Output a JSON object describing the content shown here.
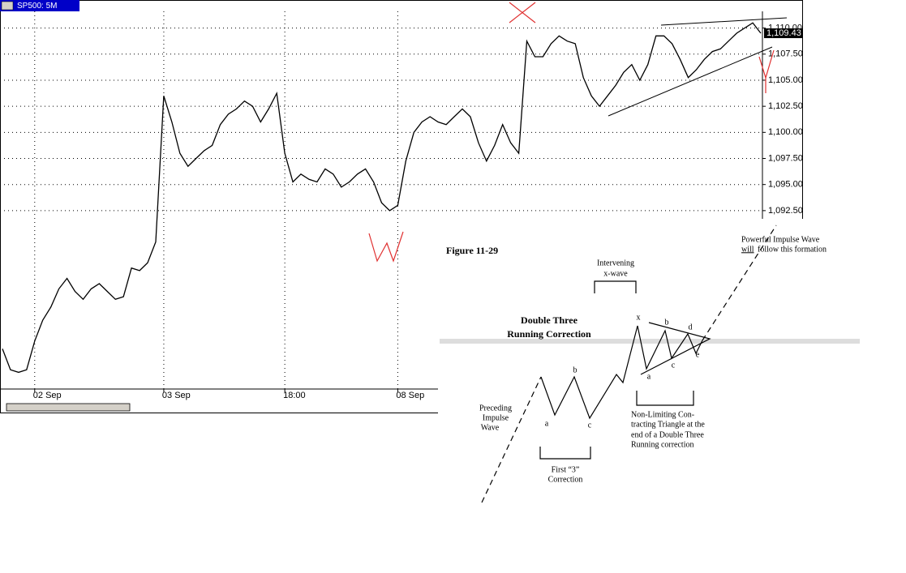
{
  "chart_data": {
    "type": "line",
    "title": "SP500: 5M",
    "color": "#000000",
    "categories": [
      null,
      null,
      null,
      null,
      "02 Sep",
      null,
      null,
      null,
      null,
      null,
      null,
      null,
      null,
      null,
      null,
      null,
      null,
      null,
      null,
      null,
      "03 Sep",
      null,
      null,
      null,
      null,
      null,
      null,
      null,
      null,
      null,
      null,
      null,
      null,
      null,
      null,
      "18:00",
      null,
      null,
      null,
      null,
      null,
      null,
      null,
      null,
      null,
      null,
      null,
      null,
      null,
      "08 Sep",
      null,
      null,
      null,
      null,
      null,
      null,
      null,
      null,
      null,
      null,
      null,
      null,
      null,
      null,
      null,
      null,
      null,
      null,
      null,
      null,
      null,
      null,
      null,
      null,
      null,
      null,
      null,
      null,
      null,
      null,
      null,
      null,
      null,
      null,
      null,
      null,
      null,
      null,
      null,
      null,
      null,
      null,
      null,
      null,
      null
    ],
    "values": [
      1079.25,
      1077.25,
      1077,
      1077.25,
      1080,
      1082,
      1083.25,
      1085,
      1086,
      1084.75,
      1084,
      1085,
      1085.5,
      1084.75,
      1084,
      1084.25,
      1087,
      1086.75,
      1087.5,
      1089.5,
      1103.5,
      1101,
      1098,
      1096.75,
      1097.5,
      1098.25,
      1098.75,
      1100.75,
      1101.75,
      1102.25,
      1103,
      1102.5,
      1101,
      1102.25,
      1103.75,
      1098,
      1095.25,
      1096,
      1095.5,
      1095.25,
      1096.5,
      1096,
      1094.75,
      1095.25,
      1096,
      1096.5,
      1095.25,
      1093.25,
      1092.5,
      1093,
      1097.25,
      1100,
      1101,
      1101.5,
      1101,
      1100.75,
      1101.5,
      1102.25,
      1101.5,
      1099,
      1097.25,
      1098.75,
      1100.75,
      1099,
      1098,
      1108.75,
      1107.25,
      1107.25,
      1108.5,
      1109.25,
      1108.75,
      1108.5,
      1105.25,
      1103.5,
      1102.5,
      1103.5,
      1104.5,
      1105.75,
      1106.5,
      1105,
      1106.5,
      1109.25,
      1109.25,
      1108.5,
      1107,
      1105.25,
      1106,
      1107,
      1107.75,
      1108,
      1108.75,
      1109.5,
      1110,
      1110.5,
      1109.5
    ],
    "ylim": [
      1075.4,
      1111.6
    ],
    "yticks": [
      {
        "value": 1092.5,
        "label": "1,092.50"
      },
      {
        "value": 1095,
        "label": "1,095.00"
      },
      {
        "value": 1097.5,
        "label": "1,097.50"
      },
      {
        "value": 1100,
        "label": "1,100.00"
      },
      {
        "value": 1102.5,
        "label": "1,102.50"
      },
      {
        "value": 1105,
        "label": "1,105.00"
      },
      {
        "value": 1107.5,
        "label": "1,107.50"
      },
      {
        "value": 1110,
        "label": "1,110.00"
      }
    ],
    "grid": true,
    "annotations": [
      "1,109.43"
    ]
  },
  "figure": {
    "title": "Figure 11-29",
    "heading": [
      "Double Three",
      "Running Correction"
    ],
    "next_wave": [
      "Powerful Impulse Wave",
      "will",
      "follow this formation"
    ],
    "intervening": [
      "Intervening",
      "x-wave"
    ],
    "preceding": [
      "Preceding",
      "Impulse",
      "Wave"
    ],
    "first_correction": [
      "First “3”",
      "Correction"
    ],
    "triangle": [
      "Non-Limiting Con-",
      "tracting Triangle at the",
      "end of a Double Three",
      "Running correction"
    ],
    "wave_labels": [
      "a",
      "b",
      "c",
      "x",
      "a",
      "b",
      "c",
      "d",
      "e"
    ]
  }
}
